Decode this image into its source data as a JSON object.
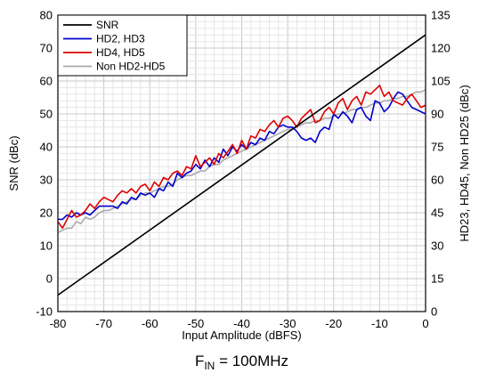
{
  "chart_data": {
    "type": "line",
    "xlabel": "Input Amplitude (dBFS)",
    "ylabel": "SNR (dBc)",
    "y2label": "HD23, HD45, Non HD25 (dBc)",
    "xlim": [
      -80,
      0
    ],
    "ylim": [
      -10,
      80
    ],
    "y2lim": [
      0,
      135
    ],
    "x_ticks": [
      "-80",
      "-70",
      "-60",
      "-50",
      "-40",
      "-30",
      "-20",
      "-10",
      "0"
    ],
    "y_ticks": [
      "-10",
      "0",
      "10",
      "20",
      "30",
      "40",
      "50",
      "60",
      "70",
      "80"
    ],
    "y2_ticks": [
      "0",
      "15",
      "30",
      "45",
      "60",
      "75",
      "90",
      "105",
      "120",
      "135"
    ],
    "grid": true,
    "legend_position": "top-left",
    "caption_main": "F",
    "caption_sub": "IN",
    "caption_rest": " = 100MHz",
    "series": [
      {
        "name": "SNR",
        "color": "#000000",
        "axis": "left",
        "x": [
          -80,
          0
        ],
        "y": [
          -5,
          74
        ]
      },
      {
        "name": "HD2, HD3",
        "color": "#0000cc",
        "axis": "right",
        "x": [
          -80,
          -79,
          -78,
          -77,
          -76,
          -75,
          -74,
          -73,
          -72,
          -71,
          -70,
          -69,
          -68,
          -67,
          -66,
          -65,
          -64,
          -63,
          -62,
          -61,
          -60,
          -59,
          -58,
          -57,
          -56,
          -55,
          -54,
          -53,
          -52,
          -51,
          -50,
          -49,
          -48,
          -47,
          -46,
          -45,
          -44,
          -43,
          -42,
          -41,
          -40,
          -39,
          -38,
          -37,
          -36,
          -35,
          -34,
          -33,
          -32,
          -31,
          -30,
          -29,
          -28,
          -27,
          -26,
          -25,
          -24,
          -23,
          -22,
          -21,
          -20,
          -19,
          -18,
          -17,
          -16,
          -15,
          -14,
          -13,
          -12,
          -11,
          -10,
          -9,
          -8,
          -7,
          -6,
          -5,
          -4,
          -3,
          -2,
          -1,
          0
        ],
        "y": [
          42,
          42,
          44,
          43,
          45,
          44,
          45,
          44,
          46,
          48,
          48,
          48,
          48,
          47,
          50,
          49,
          52,
          51,
          54,
          53,
          54,
          52,
          56,
          55,
          59,
          57,
          63,
          61,
          63,
          64,
          67,
          65,
          69,
          66,
          70,
          68,
          74,
          71,
          75,
          73,
          76,
          74,
          77,
          76,
          79,
          78,
          82,
          81,
          84,
          85,
          84,
          84,
          82,
          79,
          78,
          79,
          77,
          82,
          84,
          83,
          90,
          88,
          91,
          89,
          86,
          92,
          93,
          89,
          87,
          96,
          95,
          91,
          93,
          97,
          100,
          99,
          96,
          93,
          92,
          91,
          90
        ]
      },
      {
        "name": "HD4, HD5",
        "color": "#dd0000",
        "axis": "right",
        "x": [
          -80,
          -79,
          -78,
          -77,
          -76,
          -75,
          -74,
          -73,
          -72,
          -71,
          -70,
          -69,
          -68,
          -67,
          -66,
          -65,
          -64,
          -63,
          -62,
          -61,
          -60,
          -59,
          -58,
          -57,
          -56,
          -55,
          -54,
          -53,
          -52,
          -51,
          -50,
          -49,
          -48,
          -47,
          -46,
          -45,
          -44,
          -43,
          -42,
          -41,
          -40,
          -39,
          -38,
          -37,
          -36,
          -35,
          -34,
          -33,
          -32,
          -31,
          -30,
          -29,
          -28,
          -27,
          -26,
          -25,
          -24,
          -23,
          -22,
          -21,
          -20,
          -19,
          -18,
          -17,
          -16,
          -15,
          -14,
          -13,
          -12,
          -11,
          -10,
          -9,
          -8,
          -7,
          -6,
          -5,
          -4,
          -3,
          -2,
          -1,
          0
        ],
        "y": [
          41,
          38,
          42,
          46,
          43,
          44,
          46,
          49,
          47,
          50,
          52,
          51,
          50,
          53,
          55,
          54,
          56,
          54,
          57,
          58,
          55,
          59,
          57,
          61,
          60,
          63,
          64,
          62,
          66,
          65,
          71,
          66,
          68,
          70,
          67,
          72,
          70,
          73,
          76,
          72,
          78,
          74,
          80,
          79,
          83,
          82,
          85,
          87,
          84,
          88,
          89,
          87,
          84,
          88,
          90,
          92,
          86,
          87,
          91,
          93,
          90,
          95,
          97,
          92,
          96,
          98,
          94,
          100,
          99,
          101,
          103,
          98,
          100,
          96,
          95,
          94,
          97,
          99,
          96,
          93,
          94
        ]
      },
      {
        "name": "Non HD2-HD5",
        "color": "#aaaaaa",
        "axis": "right",
        "x": [
          -80,
          -79,
          -78,
          -77,
          -76,
          -75,
          -74,
          -73,
          -72,
          -71,
          -70,
          -69,
          -68,
          -67,
          -66,
          -65,
          -64,
          -63,
          -62,
          -61,
          -60,
          -59,
          -58,
          -57,
          -56,
          -55,
          -54,
          -53,
          -52,
          -51,
          -50,
          -49,
          -48,
          -47,
          -46,
          -45,
          -44,
          -43,
          -42,
          -41,
          -40,
          -39,
          -38,
          -37,
          -36,
          -35,
          -34,
          -33,
          -32,
          -31,
          -30,
          -29,
          -28,
          -27,
          -26,
          -25,
          -24,
          -23,
          -22,
          -21,
          -20,
          -19,
          -18,
          -17,
          -16,
          -15,
          -14,
          -13,
          -12,
          -11,
          -10,
          -9,
          -8,
          -7,
          -6,
          -5,
          -4,
          -3,
          -2,
          -1,
          0
        ],
        "y": [
          36,
          37,
          38,
          38,
          41,
          40,
          43,
          42,
          43,
          45,
          46,
          46,
          47,
          48,
          49,
          50,
          51,
          51,
          53,
          54,
          54,
          55,
          56,
          57,
          57,
          58,
          60,
          61,
          62,
          62,
          63,
          64,
          64,
          66,
          67,
          67,
          69,
          70,
          71,
          72,
          73,
          74,
          75,
          76,
          77,
          78,
          79,
          80,
          81,
          82,
          83,
          83,
          84,
          85,
          86,
          86,
          87,
          87,
          88,
          88,
          89,
          90,
          90,
          91,
          92,
          92,
          93,
          93,
          94,
          95,
          95,
          96,
          96,
          97,
          97,
          98,
          98,
          99,
          100,
          100,
          101
        ]
      }
    ]
  }
}
